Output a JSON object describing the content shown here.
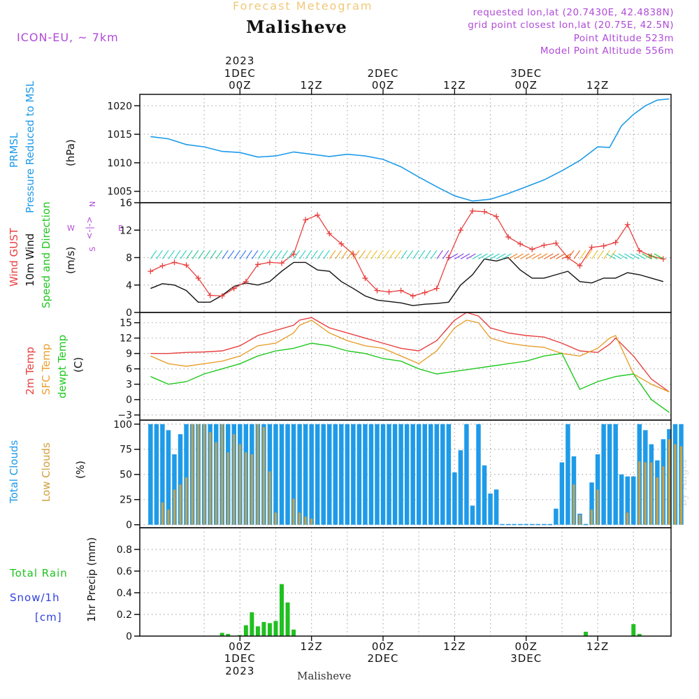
{
  "header": {
    "title": "Forecast Meteogram",
    "location": "Malisheve",
    "model": "ICON-EU, ~ 7km",
    "requested": "requested lon,lat (20.7430E, 42.4838N)",
    "grid_point": "grid point closest lon,lat (20.75E, 42.5N)",
    "point_altitude": "Point Altitude 523m",
    "model_altitude": "Model Point Altitude 556m",
    "footer": "Malisheve",
    "credit": "by Angel"
  },
  "colors": {
    "pressure": "#1e9be8",
    "gust": "#e84040",
    "wind": "#111111",
    "temp": "#e84040",
    "sfc": "#e8a030",
    "dewpt": "#20c820",
    "total_clouds": "#1e9be8",
    "low_clouds": "#d0a040",
    "rain": "#20c020",
    "snow": "#3040e0",
    "purple": "#b04ad8"
  },
  "chart_data": [
    {
      "type": "line",
      "title": "PRMSL Pressure Reduced to MSL",
      "ylabel_lines": [
        "PRMSL",
        "Pressure Reduced to MSL"
      ],
      "unit": "(hPa)",
      "ylim": [
        1003,
        1022
      ],
      "yticks": [
        1005,
        1010,
        1015,
        1020
      ],
      "x_hours": [
        -15,
        -9,
        -3,
        3,
        9,
        15,
        21,
        27,
        33,
        39,
        45,
        51,
        57,
        63
      ],
      "series": [
        {
          "name": "PRMSL",
          "color": "pressure",
          "x": [
            -15,
            -12,
            -9,
            -6,
            -3,
            0,
            3,
            6,
            9,
            12,
            15,
            18,
            21,
            24,
            27,
            30,
            33,
            36,
            39,
            42,
            45,
            48,
            51,
            54,
            57,
            60,
            62,
            64,
            66,
            68,
            70,
            72
          ],
          "y": [
            1014.6,
            1014.2,
            1013.2,
            1012.8,
            1012.0,
            1011.8,
            1011.0,
            1011.2,
            1011.9,
            1011.5,
            1011.1,
            1011.5,
            1011.2,
            1010.6,
            1009.3,
            1007.5,
            1005.8,
            1004.2,
            1003.3,
            1003.6,
            1004.6,
            1005.8,
            1007.0,
            1008.6,
            1010.4,
            1012.8,
            1012.7,
            1016.5,
            1018.5,
            1020.0,
            1021.0,
            1021.2
          ]
        }
      ]
    },
    {
      "type": "line",
      "title": "Wind GUST / 10m Wind Speed and Direction",
      "ylabel_lines": [
        "Wind GUST",
        "10m Wind",
        "Speed and Direction"
      ],
      "unit": "(m/s)",
      "compass": "N W <-|-> E S",
      "ylim": [
        0,
        16
      ],
      "yticks": [
        0,
        4,
        8,
        12,
        16
      ],
      "series": [
        {
          "name": "Wind GUST",
          "color": "gust",
          "x": [
            -15,
            -13,
            -11,
            -9,
            -7,
            -5,
            -3,
            -1,
            1,
            3,
            5,
            7,
            9,
            11,
            13,
            15,
            17,
            19,
            21,
            23,
            25,
            27,
            29,
            31,
            33,
            35,
            37,
            39,
            41,
            43,
            45,
            47,
            49,
            51,
            53,
            55,
            57,
            59,
            61,
            63,
            65,
            67,
            69,
            71
          ],
          "y": [
            6.0,
            6.8,
            7.3,
            6.9,
            5.0,
            2.5,
            2.4,
            3.5,
            4.5,
            7.0,
            7.3,
            7.2,
            8.5,
            13.5,
            14.2,
            11.5,
            10.0,
            8.5,
            5.0,
            3.2,
            3.0,
            3.2,
            2.4,
            2.9,
            3.5,
            8.0,
            12.0,
            14.8,
            14.7,
            14.0,
            11.0,
            10.0,
            9.2,
            9.8,
            10.1,
            8.0,
            6.8,
            9.5,
            9.7,
            10.2,
            12.8,
            9.0,
            8.2,
            7.8
          ]
        },
        {
          "name": "10m Wind",
          "color": "wind",
          "x": [
            -15,
            -13,
            -11,
            -9,
            -7,
            -5,
            -3,
            -1,
            1,
            3,
            5,
            7,
            9,
            11,
            13,
            15,
            17,
            19,
            21,
            23,
            25,
            27,
            29,
            31,
            33,
            35,
            37,
            39,
            41,
            43,
            45,
            47,
            49,
            51,
            53,
            55,
            57,
            59,
            61,
            63,
            65,
            67,
            69,
            71
          ],
          "y": [
            3.5,
            4.2,
            4.0,
            3.2,
            1.5,
            1.5,
            2.5,
            3.8,
            4.3,
            4.0,
            4.5,
            6.0,
            7.3,
            7.3,
            6.2,
            6.0,
            4.5,
            3.5,
            2.4,
            1.8,
            1.6,
            1.4,
            1.0,
            1.2,
            1.3,
            1.5,
            4.0,
            5.5,
            7.8,
            7.5,
            8.0,
            6.2,
            5.0,
            5.0,
            5.5,
            6.0,
            4.5,
            4.3,
            5.0,
            5.0,
            5.8,
            5.5,
            5.0,
            4.5
          ]
        }
      ]
    },
    {
      "type": "line",
      "title": "2m Temp / SFC Temp / dewpt Temp",
      "ylabel_lines": [
        "2m Temp",
        "SFC Temp",
        "dewpt Temp"
      ],
      "unit": "(C)",
      "ylim": [
        -4,
        17
      ],
      "yticks": [
        -3,
        0,
        3,
        6,
        9,
        12,
        15
      ],
      "series": [
        {
          "name": "2m Temp",
          "color": "temp",
          "x": [
            -15,
            -12,
            -9,
            -6,
            -3,
            0,
            3,
            6,
            9,
            10,
            12,
            15,
            18,
            21,
            24,
            27,
            30,
            33,
            36,
            38,
            40,
            42,
            45,
            48,
            51,
            54,
            57,
            60,
            62,
            63,
            66,
            69,
            72
          ],
          "y": [
            9.0,
            9.0,
            9.2,
            9.3,
            9.5,
            10.5,
            12.5,
            13.5,
            14.5,
            15.5,
            16.0,
            14.0,
            13.0,
            12.0,
            11.0,
            10.0,
            9.5,
            11.5,
            15.5,
            17.0,
            16.3,
            14.0,
            13.0,
            12.5,
            12.2,
            11.0,
            9.5,
            9.2,
            10.8,
            12.0,
            8.5,
            4.0,
            1.5
          ]
        },
        {
          "name": "SFC Temp",
          "color": "sfc",
          "x": [
            -15,
            -12,
            -9,
            -6,
            -3,
            0,
            3,
            6,
            9,
            10,
            12,
            15,
            18,
            21,
            24,
            27,
            30,
            33,
            36,
            38,
            40,
            42,
            45,
            48,
            51,
            54,
            57,
            60,
            62,
            63,
            66,
            69,
            72
          ],
          "y": [
            8.5,
            7.0,
            6.5,
            7.0,
            7.5,
            8.5,
            10.5,
            11.0,
            13.0,
            14.5,
            15.5,
            13.0,
            11.5,
            10.5,
            10.0,
            8.5,
            7.0,
            9.5,
            14.0,
            15.5,
            15.0,
            12.0,
            11.0,
            10.5,
            10.2,
            9.0,
            8.5,
            10.0,
            12.0,
            12.5,
            5.0,
            3.0,
            1.5
          ]
        },
        {
          "name": "dewpt Temp",
          "color": "dewpt",
          "x": [
            -15,
            -12,
            -9,
            -6,
            -3,
            0,
            3,
            6,
            9,
            12,
            15,
            18,
            21,
            24,
            27,
            30,
            33,
            36,
            39,
            42,
            45,
            48,
            51,
            54,
            57,
            60,
            63,
            66,
            69,
            72
          ],
          "y": [
            4.5,
            3.0,
            3.5,
            5.0,
            6.0,
            7.0,
            8.5,
            9.5,
            10.0,
            11.0,
            10.5,
            9.5,
            9.0,
            8.0,
            7.5,
            6.0,
            5.0,
            5.5,
            6.0,
            6.5,
            7.0,
            7.5,
            8.5,
            9.0,
            2.0,
            3.5,
            4.5,
            5.0,
            0.0,
            -2.5
          ]
        }
      ]
    },
    {
      "type": "bar",
      "title": "Total Clouds / Low Clouds",
      "ylabel_lines": [
        "Total Clouds",
        "Low Clouds"
      ],
      "unit": "(%)",
      "ylim": [
        -3,
        104
      ],
      "yticks": [
        0,
        25,
        50,
        75,
        100
      ],
      "x_start_hour": -15,
      "x_step_hours": 1,
      "series": [
        {
          "name": "Total Clouds",
          "color": "total_clouds",
          "values": [
            100,
            100,
            100,
            94,
            70,
            90,
            100,
            100,
            100,
            100,
            100,
            100,
            100,
            100,
            100,
            100,
            100,
            100,
            100,
            100,
            100,
            100,
            100,
            100,
            100,
            100,
            100,
            100,
            100,
            100,
            100,
            100,
            100,
            100,
            100,
            100,
            100,
            100,
            100,
            100,
            100,
            100,
            100,
            100,
            100,
            100,
            100,
            100,
            100,
            100,
            100,
            52,
            74,
            100,
            19,
            100,
            59,
            31,
            35,
            0,
            0,
            0,
            0,
            0,
            0,
            0,
            0,
            0,
            16,
            62,
            100,
            68,
            11,
            0,
            42,
            70,
            100,
            100,
            100,
            50,
            48,
            48,
            100,
            94,
            80,
            64,
            85,
            95,
            100,
            100
          ]
        },
        {
          "name": "Low Clouds",
          "color": "low_clouds",
          "values": [
            0,
            0,
            22,
            15,
            35,
            40,
            47,
            100,
            100,
            100,
            92,
            82,
            100,
            72,
            90,
            80,
            72,
            70,
            100,
            97,
            53,
            12,
            0,
            0,
            26,
            12,
            8,
            6,
            0,
            0,
            0,
            0,
            0,
            0,
            0,
            0,
            0,
            0,
            0,
            0,
            0,
            0,
            0,
            0,
            0,
            0,
            0,
            0,
            0,
            0,
            0,
            0,
            0,
            0,
            0,
            0,
            0,
            0,
            0,
            0,
            0,
            0,
            0,
            0,
            0,
            0,
            0,
            0,
            0,
            0,
            0,
            40,
            10,
            0,
            15,
            35,
            0,
            0,
            0,
            0,
            12,
            0,
            63,
            62,
            62,
            47,
            58,
            85,
            80,
            78
          ]
        }
      ]
    },
    {
      "type": "bar",
      "title": "Total Rain / Snow/1h",
      "ylabel_lines": [
        "Total  Rain",
        "Snow/1h",
        "[cm]"
      ],
      "unit": "1hr Precip (mm)",
      "ylim": [
        0,
        1.0
      ],
      "yticks": [
        0,
        0.2,
        0.4,
        0.6,
        0.8
      ],
      "ytick_labels": [
        "0",
        "0.2",
        "0.4",
        "0.6",
        "0.8"
      ],
      "series": [
        {
          "name": "Total Rain",
          "color": "rain",
          "x": [
            -3,
            -2,
            0,
            1,
            2,
            3,
            4,
            5,
            6,
            7,
            8,
            9,
            58,
            66,
            67
          ],
          "values": [
            0.03,
            0.02,
            0.01,
            0.1,
            0.22,
            0.09,
            0.13,
            0.12,
            0.14,
            0.48,
            0.31,
            0.06,
            0.04,
            0.11,
            0.02
          ]
        }
      ]
    },
    {
      "type": "axis",
      "x_tick_hours": [
        0,
        12,
        24,
        36,
        48,
        60
      ],
      "x_tick_labels": [
        "00Z",
        "12Z",
        "00Z",
        "12Z",
        "00Z",
        "12Z"
      ],
      "date_labels": [
        {
          "hour": 0,
          "year": "2023",
          "day": "1DEC"
        },
        {
          "hour": 24,
          "day": "2DEC"
        },
        {
          "hour": 48,
          "day": "3DEC"
        }
      ]
    }
  ]
}
